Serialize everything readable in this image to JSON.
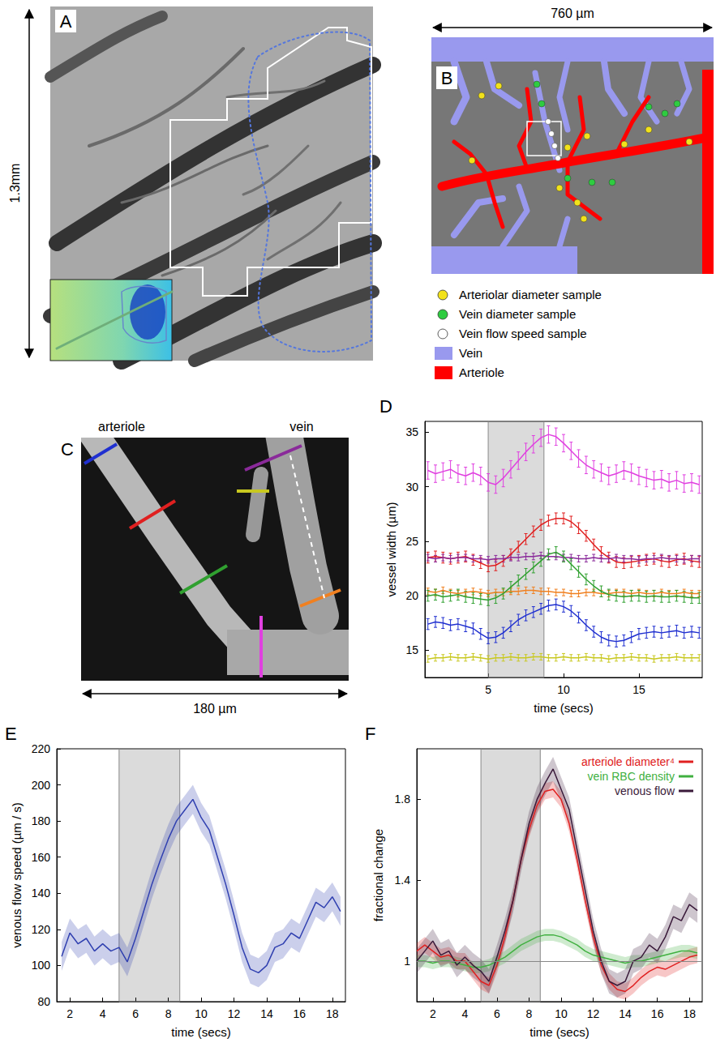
{
  "figure_panels": {
    "A": {
      "letter": "A",
      "scale_label": "1.3mm"
    },
    "B": {
      "letter": "B",
      "scale_label": "760 µm",
      "legend": [
        {
          "label": "Arteriolar diameter sample",
          "marker": "circle",
          "color": "#f2e21a"
        },
        {
          "label": "Vein diameter sample",
          "marker": "circle",
          "color": "#2ecc40"
        },
        {
          "label": "Vein flow speed sample",
          "marker": "circle",
          "color": "#ffffff"
        },
        {
          "label": "Vein",
          "marker": "rect",
          "color": "#9999ee"
        },
        {
          "label": "Arteriole",
          "marker": "rect",
          "color": "#ff0000"
        }
      ]
    },
    "C": {
      "letter": "C",
      "vessel_labels": [
        "arteriole",
        "vein"
      ],
      "scale_label": "180 µm"
    }
  },
  "chart_data": [
    {
      "panel": "D",
      "type": "errorbar",
      "xlabel": "time (secs)",
      "ylabel": "vessel width (µm)",
      "xlim": [
        0.8,
        19.2
      ],
      "xticks": [
        5,
        10,
        15
      ],
      "ylim": [
        12.5,
        36
      ],
      "yticks": [
        15,
        20,
        25,
        30,
        35
      ],
      "grid": false,
      "stimulus": [
        5,
        8.7
      ],
      "x": [
        1,
        1.5,
        2,
        2.5,
        3,
        3.5,
        4,
        4.5,
        5,
        5.5,
        6,
        6.5,
        7,
        7.5,
        8,
        8.5,
        9,
        9.5,
        10,
        10.5,
        11,
        11.5,
        12,
        12.5,
        13,
        13.5,
        14,
        14.5,
        15,
        15.5,
        16,
        16.5,
        17,
        17.5,
        18,
        18.5,
        19
      ],
      "series": [
        {
          "color": "#e040e0",
          "error": 0.8,
          "values": [
            31.5,
            31.2,
            31.4,
            31.6,
            31.2,
            31,
            31.3,
            31,
            30.4,
            30.2,
            30.8,
            31.6,
            32.4,
            33.2,
            33.9,
            34.5,
            34.8,
            34.6,
            34,
            33.3,
            32.6,
            32,
            31.6,
            31.3,
            31,
            31.2,
            31.5,
            31.3,
            31,
            30.8,
            30.6,
            30.7,
            30.4,
            30.6,
            30.3,
            30.4,
            30.2
          ]
        },
        {
          "color": "#e02020",
          "error": 0.5,
          "values": [
            23.5,
            23.6,
            23.5,
            23.4,
            23.5,
            23.6,
            23.3,
            23,
            22.7,
            22.8,
            23.2,
            23.8,
            24.5,
            25.2,
            25.9,
            26.5,
            26.9,
            27.1,
            27.1,
            26.8,
            26.2,
            25.5,
            24.7,
            24,
            23.5,
            23.1,
            23,
            23.1,
            23.2,
            23.3,
            23.4,
            23.2,
            23.1,
            23.3,
            23.4,
            23.2,
            23.1
          ]
        },
        {
          "color": "#8a2a9a",
          "error": 0.3,
          "values": [
            23.5,
            23.4,
            23.5,
            23.4,
            23.5,
            23.5,
            23.4,
            23.4,
            23.3,
            23.4,
            23.4,
            23.5,
            23.5,
            23.6,
            23.6,
            23.7,
            23.6,
            23.6,
            23.5,
            23.5,
            23.4,
            23.4,
            23.5,
            23.4,
            23.4,
            23.5,
            23.4,
            23.4,
            23.3,
            23.4,
            23.4,
            23.5,
            23.4,
            23.4,
            23.3,
            23.4,
            23.4
          ]
        },
        {
          "color": "#f08020",
          "error": 0.3,
          "values": [
            20.4,
            20.3,
            20.5,
            20.3,
            20.2,
            20.3,
            20.4,
            20.3,
            20.2,
            20.3,
            20.3,
            20.4,
            20.4,
            20.5,
            20.5,
            20.4,
            20.4,
            20.3,
            20.3,
            20.2,
            20.2,
            20.3,
            20.3,
            20.2,
            20.2,
            20.3,
            20.3,
            20.2,
            20.3,
            20.2,
            20.2,
            20.3,
            20.2,
            20.2,
            20.3,
            20.2,
            20.2
          ]
        },
        {
          "color": "#30a030",
          "error": 0.5,
          "values": [
            20,
            20.1,
            19.9,
            20,
            20.1,
            19.9,
            19.8,
            19.7,
            19.6,
            19.8,
            20.2,
            20.8,
            21.4,
            22,
            22.6,
            23.2,
            23.8,
            24,
            23.6,
            22.9,
            22.2,
            21.5,
            20.9,
            20.4,
            20.1,
            20,
            19.9,
            20,
            20,
            19.9,
            20,
            19.9,
            19.9,
            20,
            19.9,
            19.8,
            19.8
          ]
        },
        {
          "color": "#2030d0",
          "error": 0.5,
          "values": [
            17.4,
            17.6,
            17.5,
            17.3,
            17.4,
            17.2,
            17,
            16.5,
            16.1,
            16.2,
            16.6,
            17.2,
            17.8,
            18.2,
            18.5,
            18.8,
            19.1,
            19.2,
            19,
            18.6,
            18,
            17.3,
            16.7,
            16.2,
            15.9,
            15.8,
            15.9,
            16.2,
            16.5,
            16.6,
            16.7,
            16.6,
            16.7,
            16.8,
            16.6,
            16.7,
            16.6
          ]
        },
        {
          "color": "#c8c820",
          "error": 0.3,
          "values": [
            14.2,
            14.3,
            14.3,
            14.4,
            14.3,
            14.3,
            14.4,
            14.3,
            14.2,
            14.3,
            14.3,
            14.4,
            14.3,
            14.3,
            14.4,
            14.4,
            14.3,
            14.3,
            14.4,
            14.3,
            14.3,
            14.4,
            14.3,
            14.3,
            14.2,
            14.3,
            14.3,
            14.4,
            14.3,
            14.3,
            14.2,
            14.3,
            14.3,
            14.4,
            14.3,
            14.3,
            14.3
          ]
        }
      ]
    },
    {
      "panel": "E",
      "type": "line",
      "xlabel": "time (secs)",
      "ylabel": "venous flow speed (µm / s)",
      "xlim": [
        1.2,
        18.8
      ],
      "xticks": [
        2,
        4,
        6,
        8,
        10,
        12,
        14,
        16,
        18
      ],
      "ylim": [
        80,
        220
      ],
      "yticks": [
        80,
        100,
        120,
        140,
        160,
        180,
        200,
        220
      ],
      "grid": false,
      "stimulus": [
        5,
        8.7
      ],
      "x": [
        1.5,
        2,
        2.5,
        3,
        3.5,
        4,
        4.5,
        5,
        5.5,
        6,
        6.5,
        7,
        7.5,
        8,
        8.5,
        9,
        9.5,
        10,
        10.5,
        11,
        11.5,
        12,
        12.5,
        13,
        13.5,
        14,
        14.5,
        15,
        15.5,
        16,
        16.5,
        17,
        17.5,
        18,
        18.5
      ],
      "series": [
        {
          "color": "#3040b0",
          "error": 8,
          "values": [
            105,
            118,
            112,
            115,
            108,
            112,
            108,
            110,
            102,
            115,
            130,
            145,
            158,
            170,
            180,
            186,
            192,
            182,
            175,
            160,
            145,
            128,
            110,
            98,
            96,
            100,
            110,
            112,
            118,
            115,
            125,
            135,
            132,
            138,
            130
          ]
        }
      ]
    },
    {
      "panel": "F",
      "type": "line",
      "xlabel": "time (secs)",
      "ylabel": "fractional change",
      "xlim": [
        1,
        18.8
      ],
      "xticks": [
        2,
        4,
        6,
        8,
        10,
        12,
        14,
        16,
        18
      ],
      "ylim": [
        0.8,
        2.05
      ],
      "yticks": [
        1,
        1.4,
        1.8
      ],
      "grid": false,
      "legend": "upper right",
      "stimulus": [
        5,
        8.7
      ],
      "reference_line": 1,
      "x": [
        1,
        1.5,
        2,
        2.5,
        3,
        3.5,
        4,
        4.5,
        5,
        5.5,
        6,
        6.5,
        7,
        7.5,
        8,
        8.5,
        9,
        9.5,
        10,
        10.5,
        11,
        11.5,
        12,
        12.5,
        13,
        13.5,
        14,
        14.5,
        15,
        15.5,
        16,
        16.5,
        17,
        17.5,
        18,
        18.5
      ],
      "series": [
        {
          "name": "arteriole diameter⁴",
          "color": "#e02020",
          "error": 0.04,
          "values": [
            1.05,
            1.08,
            1.05,
            1.02,
            1.03,
            1.0,
            1.0,
            0.95,
            0.9,
            0.88,
            0.98,
            1.12,
            1.3,
            1.5,
            1.65,
            1.77,
            1.84,
            1.85,
            1.8,
            1.68,
            1.5,
            1.3,
            1.12,
            0.98,
            0.9,
            0.86,
            0.85,
            0.88,
            0.92,
            0.95,
            0.97,
            0.96,
            0.98,
            1.0,
            1.02,
            1.03
          ]
        },
        {
          "name": "vein RBC density",
          "color": "#40b040",
          "error": 0.03,
          "values": [
            1.0,
            1.0,
            0.99,
            1.0,
            1.0,
            0.99,
            0.98,
            0.97,
            0.97,
            0.98,
            1.0,
            1.02,
            1.05,
            1.08,
            1.1,
            1.12,
            1.13,
            1.13,
            1.12,
            1.1,
            1.08,
            1.05,
            1.03,
            1.02,
            1.01,
            1.0,
            0.99,
            1.0,
            1.0,
            1.01,
            1.02,
            1.03,
            1.04,
            1.05,
            1.05,
            1.04
          ]
        },
        {
          "name": "venous flow",
          "color": "#3a1a3a",
          "error": 0.06,
          "values": [
            1.0,
            1.05,
            1.1,
            1.03,
            1.05,
            0.98,
            1.02,
            0.98,
            0.95,
            0.9,
            1.02,
            1.15,
            1.3,
            1.5,
            1.68,
            1.8,
            1.88,
            1.95,
            1.85,
            1.75,
            1.55,
            1.35,
            1.15,
            1.0,
            0.9,
            0.88,
            0.9,
            1.0,
            1.02,
            1.08,
            1.05,
            1.12,
            1.22,
            1.2,
            1.28,
            1.25
          ]
        }
      ]
    }
  ]
}
